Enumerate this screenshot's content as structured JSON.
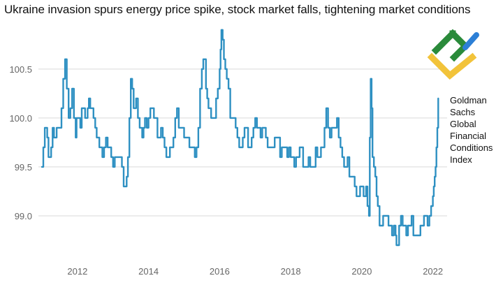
{
  "chart_data": {
    "type": "line",
    "title": "Ukraine invasion spurs energy price spike, stock market falls, tightening market conditions",
    "xlabel": "",
    "ylabel": "",
    "xlim": [
      2011.0,
      2022.4
    ],
    "ylim": [
      98.55,
      100.92
    ],
    "x_ticks": [
      "2012",
      "2014",
      "2016",
      "2018",
      "2020",
      "2022"
    ],
    "y_ticks": [
      "99.0",
      "99.5",
      "100.0",
      "100.5"
    ],
    "grid": "horizontal",
    "legend": "right",
    "series": [
      {
        "name": "Goldman Sachs Global Financial Conditions Index",
        "x": [
          2011.0,
          2011.08,
          2011.15,
          2011.22,
          2011.3,
          2011.38,
          2011.45,
          2011.55,
          2011.65,
          2011.75,
          2011.85,
          2011.95,
          2012.0,
          2012.08,
          2012.12,
          2012.18,
          2012.25,
          2012.32,
          2012.4,
          2012.5,
          2012.58,
          2012.65,
          2012.75,
          2012.85,
          2012.95,
          2013.05,
          2013.15,
          2013.25,
          2013.35,
          2013.42,
          2013.5,
          2013.58,
          2013.65,
          2013.75,
          2013.82,
          2013.9,
          2014.0,
          2014.1,
          2014.2,
          2014.3,
          2014.4,
          2014.5,
          2014.6,
          2014.7,
          2014.8,
          2014.9,
          2015.0,
          2015.1,
          2015.2,
          2015.3,
          2015.4,
          2015.5,
          2015.58,
          2015.65,
          2015.72,
          2015.8,
          2015.9,
          2016.0,
          2016.05,
          2016.12,
          2016.2,
          2016.3,
          2016.4,
          2016.5,
          2016.6,
          2016.7,
          2016.8,
          2016.9,
          2017.0,
          2017.1,
          2017.2,
          2017.3,
          2017.4,
          2017.5,
          2017.6,
          2017.7,
          2017.8,
          2017.9,
          2018.0,
          2018.1,
          2018.2,
          2018.3,
          2018.4,
          2018.5,
          2018.6,
          2018.7,
          2018.8,
          2018.9,
          2019.0,
          2019.1,
          2019.2,
          2019.3,
          2019.4,
          2019.5,
          2019.6,
          2019.7,
          2019.8,
          2019.9,
          2020.0,
          2020.05,
          2020.12,
          2020.2,
          2020.25,
          2020.3,
          2020.38,
          2020.45,
          2020.55,
          2020.65,
          2020.75,
          2020.85,
          2020.95,
          2021.0,
          2021.1,
          2021.2,
          2021.3,
          2021.4,
          2021.5,
          2021.6,
          2021.7,
          2021.8,
          2021.9,
          2021.95,
          2022.0,
          2022.05,
          2022.1,
          2022.15
        ],
        "y": [
          99.5,
          99.9,
          99.8,
          99.6,
          99.9,
          99.8,
          99.9,
          100.1,
          100.6,
          100.0,
          100.3,
          99.8,
          100.0,
          99.9,
          100.1,
          100.1,
          100.0,
          100.2,
          100.1,
          99.9,
          99.8,
          99.7,
          99.7,
          99.7,
          99.6,
          99.6,
          99.6,
          99.5,
          99.3,
          99.6,
          100.4,
          100.1,
          100.2,
          99.9,
          99.8,
          100.0,
          100.0,
          100.1,
          100.0,
          99.8,
          99.8,
          99.6,
          99.7,
          99.8,
          100.1,
          99.9,
          99.8,
          99.8,
          99.7,
          99.6,
          99.9,
          100.5,
          100.6,
          100.2,
          100.1,
          100.0,
          100.2,
          100.5,
          100.9,
          100.6,
          100.4,
          100.0,
          100.0,
          99.8,
          99.7,
          99.9,
          99.7,
          99.8,
          100.0,
          99.9,
          99.9,
          99.8,
          99.7,
          99.7,
          99.8,
          99.6,
          99.7,
          99.6,
          99.6,
          99.5,
          99.6,
          99.7,
          99.5,
          99.6,
          99.5,
          99.7,
          99.6,
          99.7,
          100.1,
          99.8,
          99.9,
          100.0,
          99.7,
          99.5,
          99.6,
          99.4,
          99.3,
          99.2,
          99.3,
          99.2,
          99.3,
          99.0,
          100.4,
          99.6,
          99.4,
          99.1,
          98.9,
          99.0,
          98.9,
          98.8,
          98.8,
          98.7,
          99.0,
          98.9,
          98.9,
          99.0,
          98.8,
          98.8,
          98.9,
          99.0,
          99.0,
          99.1,
          99.2,
          99.4,
          99.7,
          100.2
        ]
      }
    ]
  },
  "legend": {
    "lines": [
      "Goldman",
      "Sachs",
      "Global",
      "Financial",
      "Conditions",
      "Index"
    ]
  },
  "logo": {
    "colors": [
      "#2a8a3a",
      "#f2c33a",
      "#2c7fd6"
    ]
  },
  "colors": {
    "series": "#2e90c2",
    "grid": "#d9d9d9",
    "tick_text": "#666666",
    "title_text": "#111111"
  }
}
